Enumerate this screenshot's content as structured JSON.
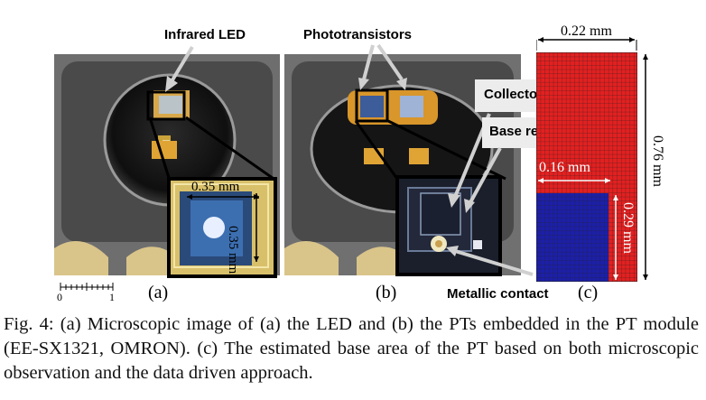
{
  "figure": {
    "panel_a": {
      "label": "(a)",
      "annotation": "Infrared LED",
      "dim_width": "0.35 mm",
      "dim_height": "0.35 mm",
      "scale_ticks": [
        "0",
        "1"
      ]
    },
    "panel_b": {
      "label": "(b)",
      "annotation_phototransistors": "Phototransistors",
      "annotation_collector": "Collector region",
      "annotation_base": "Base region",
      "annotation_contact": "Metallic contact"
    },
    "panel_c": {
      "label": "(c)",
      "dim_width": "0.22 mm",
      "dim_height": "0.76 mm",
      "dim_base_width": "0.16 mm",
      "dim_base_height": "0.29 mm",
      "colors": {
        "collector": "#e32020",
        "base": "#1c1fa8",
        "mesh": "#222222"
      }
    },
    "caption": "Fig. 4: (a) Microscopic image of (a) the LED and (b) the PTs embedded in the PT module (EE-SX1321, OMRON). (c) The estimated base area of the PT based on both microscopic observation and the data driven approach."
  }
}
